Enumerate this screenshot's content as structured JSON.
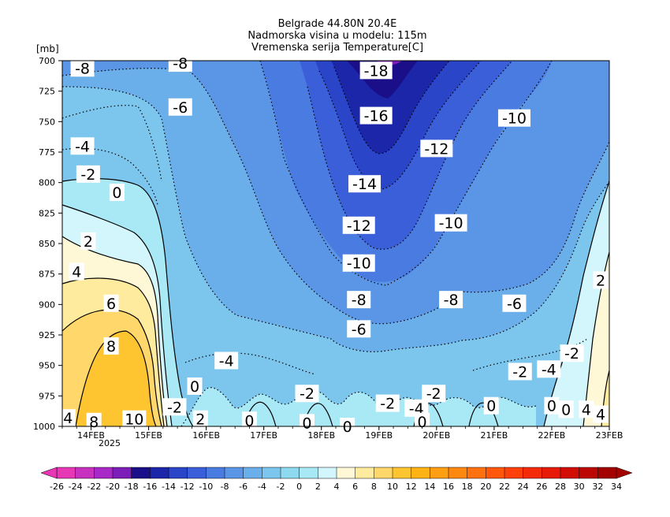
{
  "chart_data": {
    "type": "heatmap",
    "title_lines": [
      "Belgrade  44.80N 20.4E",
      "Nadmorska visina u modelu: 115m",
      "Vremenska serija Temperature[C]"
    ],
    "y_unit": "[mb]",
    "y_ticks": [
      "700",
      "725",
      "750",
      "775",
      "800",
      "825",
      "850",
      "875",
      "900",
      "925",
      "950",
      "975",
      "1000"
    ],
    "y_range": [
      700,
      1000
    ],
    "x_ticks": [
      "14FEB",
      "15FEB",
      "16FEB",
      "17FEB",
      "18FEB",
      "19FEB",
      "20FEB",
      "21FEB",
      "22FEB",
      "23FEB"
    ],
    "x_year": "2025",
    "grid": false,
    "legend_position": "bottom",
    "colorbar": {
      "labels": [
        "-26",
        "-24",
        "-22",
        "-20",
        "-18",
        "-16",
        "-14",
        "-12",
        "-10",
        "-8",
        "-6",
        "-4",
        "-2",
        "0",
        "2",
        "4",
        "6",
        "8",
        "10",
        "12",
        "14",
        "16",
        "18",
        "20",
        "22",
        "24",
        "26",
        "28",
        "30",
        "32",
        "34"
      ],
      "colors": [
        "#e837b5",
        "#c830c0",
        "#a828c8",
        "#7c1eb8",
        "#1a0f88",
        "#1c26a8",
        "#2a45c8",
        "#3b5fd8",
        "#4a7be0",
        "#5a95e6",
        "#6aaeea",
        "#7cc6ee",
        "#8ed8f0",
        "#a9e8f5",
        "#d2f6fb",
        "#fff8d6",
        "#ffeb9e",
        "#ffd76a",
        "#ffc531",
        "#ffb315",
        "#ff9e12",
        "#ff8810",
        "#ff700e",
        "#ff580c",
        "#ff400a",
        "#f52a08",
        "#e61a06",
        "#d20e04",
        "#bc0602",
        "#a50000"
      ]
    },
    "pressure_profiles_note": "Temperature [C] sampled along time at selected pressure levels",
    "series": [
      {
        "level": 700,
        "x": [
          13.5,
          14.0,
          14.5,
          15.0,
          15.5,
          16.0,
          16.5,
          17.0,
          17.5,
          18.0,
          18.5,
          19.0,
          19.5,
          20.0,
          20.5,
          21.0,
          21.5,
          22.0,
          22.5,
          23.0
        ],
        "values": [
          -9,
          -8.5,
          -8,
          -8,
          -8,
          -9,
          -10,
          -11,
          -13,
          -15,
          -17,
          -18,
          -16,
          -13,
          -11,
          -10,
          -9,
          -8,
          -8,
          -8
        ]
      },
      {
        "level": 800,
        "x": [
          13.5,
          14.0,
          14.5,
          15.0,
          15.5,
          16.0,
          16.5,
          17.0,
          17.5,
          18.0,
          18.5,
          19.0,
          19.5,
          20.0,
          20.5,
          21.0,
          21.5,
          22.0,
          22.5,
          23.0
        ],
        "values": [
          -1,
          -1,
          -2,
          -4,
          -6,
          -7,
          -8,
          -9,
          -11,
          -13,
          -14,
          -15,
          -13,
          -11,
          -9,
          -8,
          -7,
          -5,
          -3,
          -1
        ]
      },
      {
        "level": 900,
        "x": [
          13.5,
          14.0,
          14.5,
          15.0,
          15.5,
          16.0,
          16.5,
          17.0,
          17.5,
          18.0,
          18.5,
          19.0,
          19.5,
          20.0,
          20.5,
          21.0,
          21.5,
          22.0,
          22.5,
          23.0
        ],
        "values": [
          3,
          5,
          6,
          -4,
          -5,
          -5,
          -6,
          -6,
          -7,
          -8,
          -9,
          -9,
          -8,
          -7,
          -7,
          -6,
          -5,
          -4,
          -2,
          1
        ]
      },
      {
        "level": 975,
        "x": [
          13.5,
          14.0,
          14.5,
          15.0,
          15.5,
          16.0,
          16.5,
          17.0,
          17.5,
          18.0,
          18.5,
          19.0,
          19.5,
          20.0,
          20.5,
          21.0,
          21.5,
          22.0,
          22.5,
          23.0
        ],
        "values": [
          4,
          8,
          10,
          -2,
          0,
          -3,
          -3,
          -1,
          -2,
          0,
          -2,
          -4,
          -2,
          0,
          -2,
          0,
          -1,
          0,
          2,
          4
        ]
      }
    ],
    "contour_labels": [
      {
        "text": "-8",
        "x": 13.85,
        "p": 706
      },
      {
        "text": "-8",
        "x": 15.55,
        "p": 702
      },
      {
        "text": "-18",
        "x": 18.95,
        "p": 708
      },
      {
        "text": "-6",
        "x": 15.55,
        "p": 738
      },
      {
        "text": "-16",
        "x": 18.95,
        "p": 745
      },
      {
        "text": "-10",
        "x": 21.35,
        "p": 747
      },
      {
        "text": "-4",
        "x": 13.85,
        "p": 770
      },
      {
        "text": "-12",
        "x": 20.0,
        "p": 772
      },
      {
        "text": "-2",
        "x": 13.95,
        "p": 793
      },
      {
        "text": "0",
        "x": 14.45,
        "p": 808
      },
      {
        "text": "-14",
        "x": 18.75,
        "p": 801
      },
      {
        "text": "-10",
        "x": 20.25,
        "p": 833
      },
      {
        "text": "2",
        "x": 13.95,
        "p": 848
      },
      {
        "text": "-12",
        "x": 18.65,
        "p": 835
      },
      {
        "text": "-10",
        "x": 18.65,
        "p": 866
      },
      {
        "text": "4",
        "x": 13.75,
        "p": 873
      },
      {
        "text": "-8",
        "x": 18.65,
        "p": 896
      },
      {
        "text": "-8",
        "x": 20.25,
        "p": 896
      },
      {
        "text": "-6",
        "x": 21.35,
        "p": 899
      },
      {
        "text": "6",
        "x": 14.35,
        "p": 899
      },
      {
        "text": "-6",
        "x": 18.65,
        "p": 920
      },
      {
        "text": "8",
        "x": 14.35,
        "p": 934
      },
      {
        "text": "-4",
        "x": 16.35,
        "p": 946
      },
      {
        "text": "-2",
        "x": 21.45,
        "p": 955
      },
      {
        "text": "-4",
        "x": 21.95,
        "p": 953
      },
      {
        "text": "-2",
        "x": 22.35,
        "p": 940
      },
      {
        "text": "0",
        "x": 15.8,
        "p": 967
      },
      {
        "text": "-2",
        "x": 17.75,
        "p": 973
      },
      {
        "text": "-2",
        "x": 19.15,
        "p": 981
      },
      {
        "text": "-4",
        "x": 19.65,
        "p": 985
      },
      {
        "text": "-2",
        "x": 19.95,
        "p": 973
      },
      {
        "text": "-2",
        "x": 15.45,
        "p": 984
      },
      {
        "text": "0",
        "x": 20.95,
        "p": 983
      },
      {
        "text": "4",
        "x": 13.6,
        "p": 993
      },
      {
        "text": "8",
        "x": 14.05,
        "p": 996
      },
      {
        "text": "10",
        "x": 14.75,
        "p": 994
      },
      {
        "text": "2",
        "x": 15.9,
        "p": 994
      },
      {
        "text": "0",
        "x": 16.75,
        "p": 995
      },
      {
        "text": "0",
        "x": 17.75,
        "p": 997
      },
      {
        "text": "0",
        "x": 18.45,
        "p": 1000
      },
      {
        "text": "0",
        "x": 19.75,
        "p": 996
      },
      {
        "text": "0",
        "x": 22.0,
        "p": 983
      },
      {
        "text": "0",
        "x": 22.25,
        "p": 986
      },
      {
        "text": "4",
        "x": 22.6,
        "p": 986
      },
      {
        "text": "4",
        "x": 22.85,
        "p": 990
      },
      {
        "text": "2",
        "x": 22.85,
        "p": 880
      }
    ]
  }
}
